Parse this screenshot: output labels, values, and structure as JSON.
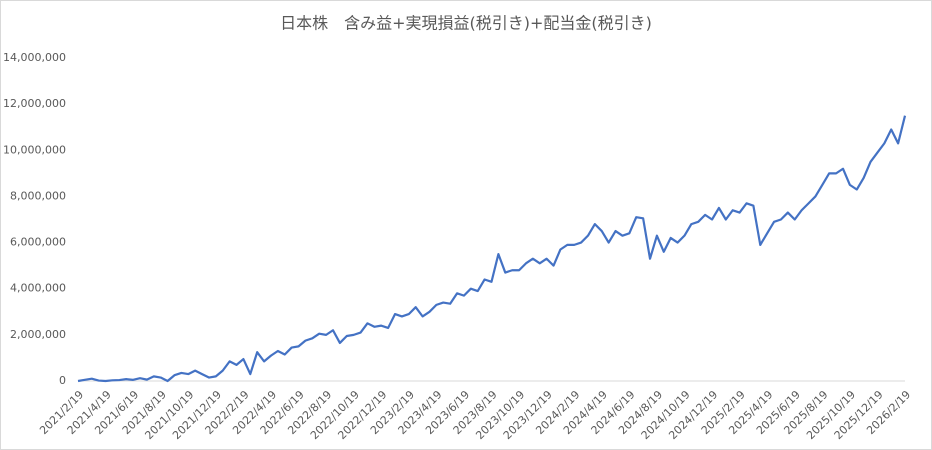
{
  "chart_data": {
    "type": "line",
    "title": "日本株　含み益+実現損益(税引き)+配当金(税引き)",
    "color": "#4472c4",
    "categories": [
      "2021/2/19",
      null,
      null,
      null,
      "2021/4/19",
      null,
      null,
      null,
      "2021/6/19",
      null,
      null,
      null,
      "2021/8/19",
      null,
      null,
      null,
      "2021/10/19",
      null,
      null,
      null,
      "2021/12/19",
      null,
      null,
      null,
      "2022/2/19",
      null,
      null,
      null,
      "2022/4/19",
      null,
      null,
      null,
      "2022/6/19",
      null,
      null,
      null,
      "2022/8/19",
      null,
      null,
      null,
      "2022/10/19",
      null,
      null,
      null,
      "2022/12/19",
      null,
      null,
      null,
      "2023/2/19",
      null,
      null,
      null,
      "2023/4/19",
      null,
      null,
      null,
      "2023/6/19",
      null,
      null,
      null,
      "2023/8/19",
      null,
      null,
      null,
      "2023/10/19",
      null,
      null,
      null,
      "2023/12/19",
      null,
      null,
      null,
      "2024/2/19",
      null,
      null,
      null,
      "2024/4/19",
      null,
      null,
      null,
      "2024/6/19",
      null,
      null,
      null,
      "2024/8/19",
      null,
      null,
      null,
      "2024/10/19",
      null,
      null,
      null,
      "2024/12/19",
      null,
      null,
      null,
      "2025/2/19",
      null,
      null,
      null,
      "2025/4/19",
      null,
      null,
      null,
      "2025/6/19",
      null,
      null,
      null,
      "2025/8/19",
      null,
      null,
      null,
      "2025/10/19",
      null,
      null,
      null,
      "2025/12/19",
      null,
      null,
      null,
      "2026/2/19"
    ],
    "values": [
      0,
      50000,
      100000,
      20000,
      0,
      30000,
      40000,
      80000,
      50000,
      120000,
      60000,
      200000,
      150000,
      0,
      250000,
      350000,
      300000,
      450000,
      300000,
      150000,
      200000,
      450000,
      850000,
      700000,
      950000,
      300000,
      1250000,
      850000,
      1100000,
      1300000,
      1150000,
      1450000,
      1500000,
      1750000,
      1850000,
      2050000,
      2000000,
      2200000,
      1650000,
      1950000,
      2000000,
      2100000,
      2500000,
      2350000,
      2400000,
      2300000,
      2900000,
      2800000,
      2900000,
      3200000,
      2800000,
      3000000,
      3300000,
      3400000,
      3350000,
      3800000,
      3700000,
      4000000,
      3900000,
      4400000,
      4300000,
      5500000,
      4700000,
      4800000,
      4800000,
      5100000,
      5300000,
      5100000,
      5300000,
      5000000,
      5700000,
      5900000,
      5900000,
      6000000,
      6300000,
      6800000,
      6500000,
      6000000,
      6500000,
      6300000,
      6400000,
      7100000,
      7050000,
      5300000,
      6300000,
      5600000,
      6200000,
      6000000,
      6300000,
      6800000,
      6900000,
      7200000,
      7000000,
      7500000,
      7000000,
      7400000,
      7300000,
      7700000,
      7600000,
      5900000,
      6400000,
      6900000,
      7000000,
      7300000,
      7000000,
      7400000,
      7700000,
      8000000,
      8500000,
      9000000,
      9000000,
      9200000,
      8500000,
      8300000,
      8800000,
      9500000,
      9900000,
      10300000,
      10900000,
      10300000,
      11500000
    ],
    "ylim": [
      0,
      14000000
    ],
    "yticks": [
      0,
      {
        "value": 2000000,
        "label": "2,000,000"
      },
      {
        "value": 4000000,
        "label": "4,000,000"
      },
      {
        "value": 6000000,
        "label": "6,000,000"
      },
      {
        "value": 8000000,
        "label": "8,000,000"
      },
      {
        "value": 10000000,
        "label": "10,000,000"
      },
      {
        "value": 12000000,
        "label": "12,000,000"
      },
      {
        "value": 14000000,
        "label": "14,000,000"
      }
    ]
  }
}
